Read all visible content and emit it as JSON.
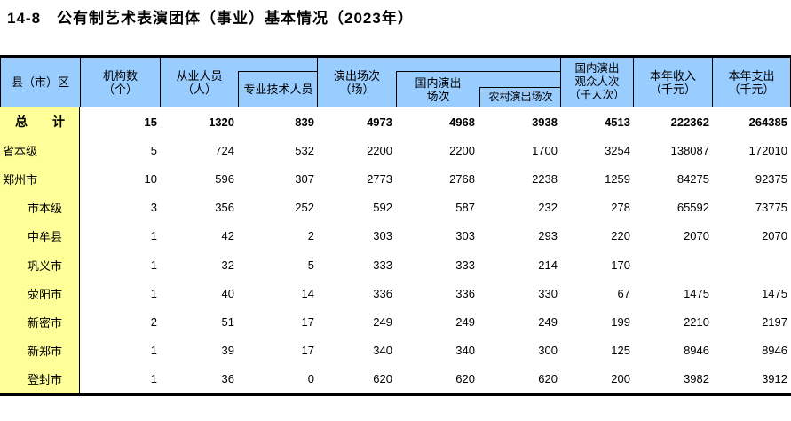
{
  "title": "14-8　公有制艺术表演团体（事业）基本情况（2023年）",
  "colors": {
    "header_bg": "#99CCFF",
    "label_column_bg": "#FFFF99",
    "border": "#000000",
    "text": "#000000"
  },
  "header": {
    "region": "县（市）区",
    "org_count": "机构数\n（个）",
    "employees": "从业人员\n（人）",
    "technical": "专业技术人员",
    "performances": "演出场次\n（场）",
    "domestic_performances": "国内演出\n场次",
    "rural_performances": "农村演出场次",
    "audience": "国内演出\n观众人次\n（千人次）",
    "income": "本年收入\n（千元）",
    "expenditure": "本年支出\n（千元）"
  },
  "rows": [
    {
      "label": "总　　计",
      "bold": true,
      "indent": "total",
      "values": [
        "15",
        "1320",
        "839",
        "4973",
        "4968",
        "3938",
        "4513",
        "222362",
        "264385"
      ]
    },
    {
      "label": "省本级",
      "bold": false,
      "indent": "flush",
      "values": [
        "5",
        "724",
        "532",
        "2200",
        "2200",
        "1700",
        "3254",
        "138087",
        "172010"
      ]
    },
    {
      "label": "郑州市",
      "bold": false,
      "indent": "flush",
      "values": [
        "10",
        "596",
        "307",
        "2773",
        "2768",
        "2238",
        "1259",
        "84275",
        "92375"
      ]
    },
    {
      "label": "市本级",
      "bold": false,
      "indent": "indent",
      "values": [
        "3",
        "356",
        "252",
        "592",
        "587",
        "232",
        "278",
        "65592",
        "73775"
      ]
    },
    {
      "label": "中牟县",
      "bold": false,
      "indent": "indent",
      "values": [
        "1",
        "42",
        "2",
        "303",
        "303",
        "293",
        "220",
        "2070",
        "2070"
      ]
    },
    {
      "label": "巩义市",
      "bold": false,
      "indent": "indent",
      "values": [
        "1",
        "32",
        "5",
        "333",
        "333",
        "214",
        "170",
        "",
        ""
      ]
    },
    {
      "label": "荥阳市",
      "bold": false,
      "indent": "indent",
      "values": [
        "1",
        "40",
        "14",
        "336",
        "336",
        "330",
        "67",
        "1475",
        "1475"
      ]
    },
    {
      "label": "新密市",
      "bold": false,
      "indent": "indent",
      "values": [
        "2",
        "51",
        "17",
        "249",
        "249",
        "249",
        "199",
        "2210",
        "2197"
      ]
    },
    {
      "label": "新郑市",
      "bold": false,
      "indent": "indent",
      "values": [
        "1",
        "39",
        "17",
        "340",
        "340",
        "300",
        "125",
        "8946",
        "8946"
      ]
    },
    {
      "label": "登封市",
      "bold": false,
      "indent": "indent",
      "values": [
        "1",
        "36",
        "0",
        "620",
        "620",
        "620",
        "200",
        "3982",
        "3912"
      ]
    }
  ]
}
